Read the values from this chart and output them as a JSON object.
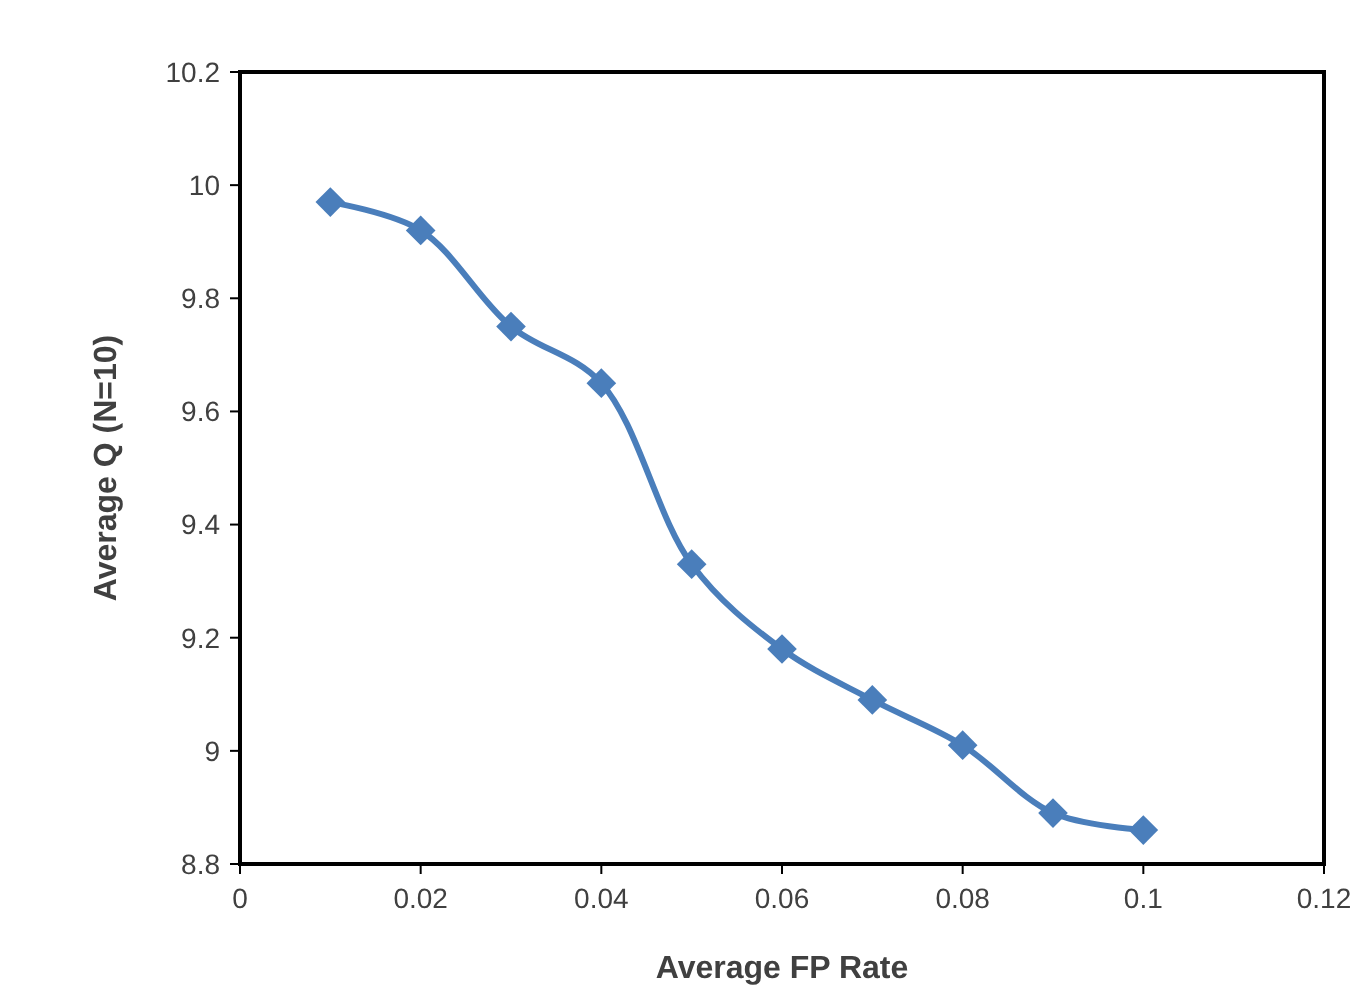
{
  "chart_data": {
    "type": "line",
    "xlabel": "Average FP Rate",
    "ylabel": "Average Q (N=10)",
    "x": [
      0.01,
      0.02,
      0.03,
      0.04,
      0.05,
      0.06,
      0.07,
      0.08,
      0.09,
      0.1
    ],
    "series": [
      {
        "color": "#4a7ebb",
        "values": [
          9.97,
          9.92,
          9.75,
          9.65,
          9.33,
          9.18,
          9.09,
          9.01,
          8.89,
          8.86
        ]
      }
    ],
    "xlim": [
      0,
      0.12
    ],
    "xticks": [
      0,
      0.02,
      0.04,
      0.06,
      0.08,
      0.1,
      0.12
    ],
    "ylim": [
      8.8,
      10.2
    ],
    "yticks": [
      8.8,
      9,
      9.2,
      9.4,
      9.6,
      9.8,
      10,
      10.2
    ],
    "marker": "diamond",
    "line_style": "solid",
    "grid": false
  }
}
